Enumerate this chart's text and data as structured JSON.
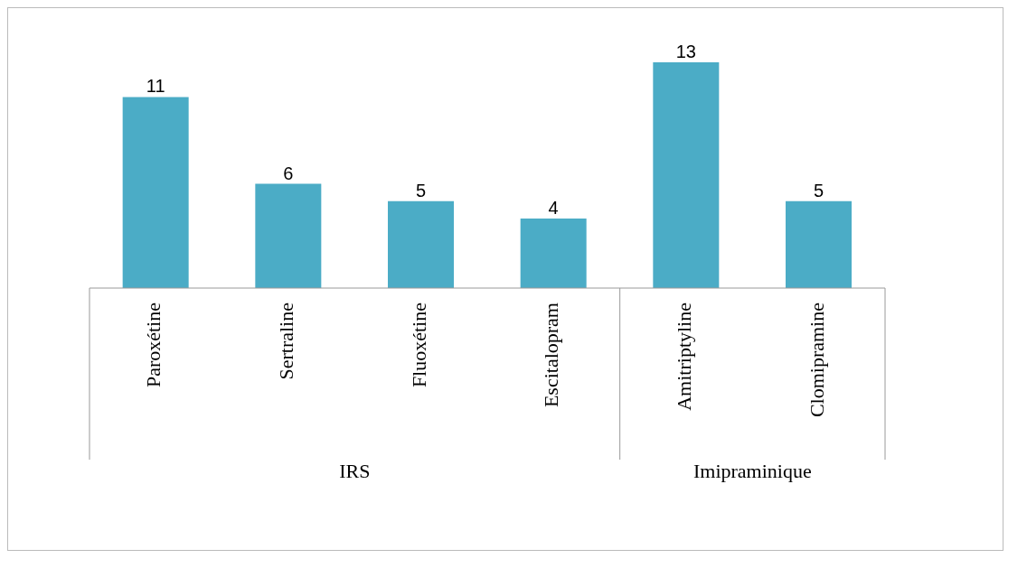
{
  "chart_data": {
    "type": "bar",
    "categories": [
      "Paroxétine",
      "Sertraline",
      "Fluoxétine",
      "Escitalopram",
      "Amitriptyline",
      "Clomipramine"
    ],
    "values": [
      11,
      6,
      5,
      4,
      13,
      5
    ],
    "color": "#4bacc6",
    "data_labels": true,
    "annotations": [
      "IRS",
      "Imipraminique"
    ]
  }
}
